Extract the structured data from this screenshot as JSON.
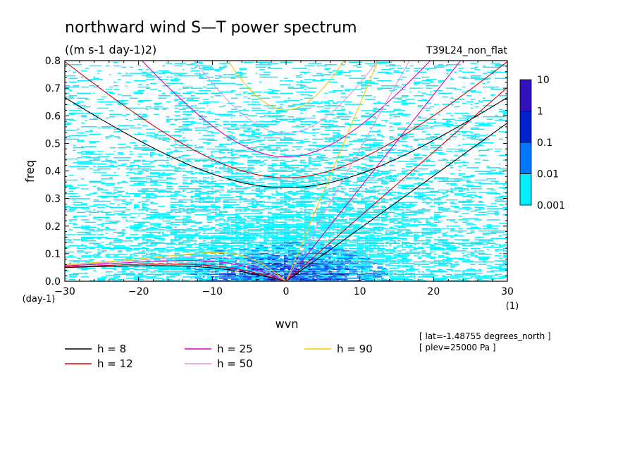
{
  "chart_data": {
    "type": "heatmap",
    "title": "northward wind S—T power spectrum",
    "subtitle": "((m s-1 day-1)2)",
    "experiment": "T39L24_non_flat",
    "xlabel": "wvn",
    "xunit": "(1)",
    "ylabel": "freq",
    "yunit": "(day-1)",
    "xlim": [
      -30,
      30
    ],
    "ylim": [
      0,
      0.8
    ],
    "xticks": [
      -30,
      -20,
      -10,
      0,
      10,
      20,
      30
    ],
    "xtick_labels": [
      "−30",
      "−20",
      "−10",
      "0",
      "10",
      "20",
      "30"
    ],
    "yticks": [
      0.0,
      0.1,
      0.2,
      0.3,
      0.4,
      0.5,
      0.6,
      0.7,
      0.8
    ],
    "ytick_labels": [
      "0.0",
      "0.1",
      "0.2",
      "0.3",
      "0.4",
      "0.5",
      "0.6",
      "0.7",
      "0.8"
    ],
    "colorbar": {
      "levels": [
        0.001,
        0.01,
        0.1,
        1,
        10
      ],
      "labels": [
        "0.001",
        "0.01",
        "0.1",
        "1",
        "10"
      ],
      "colors": [
        "#00eeff",
        "#0077ff",
        "#0022cc",
        "#3311bb"
      ]
    },
    "series": [
      {
        "name": "h = 8",
        "h": 8,
        "color": "#000000"
      },
      {
        "name": "h = 12",
        "h": 12,
        "color": "#dd0000"
      },
      {
        "name": "h = 25",
        "h": 25,
        "color": "#dd00bb"
      },
      {
        "name": "h = 50",
        "h": 50,
        "color": "#dd99dd"
      },
      {
        "name": "h = 90",
        "h": 90,
        "color": "#eecc00"
      }
    ],
    "legend": [
      {
        "label": "h =  8",
        "color": "#000000"
      },
      {
        "label": "h = 12",
        "color": "#dd0000"
      },
      {
        "label": "h = 25",
        "color": "#dd00bb"
      },
      {
        "label": "h = 50",
        "color": "#dd99dd"
      },
      {
        "label": "h = 90",
        "color": "#eecc00"
      }
    ],
    "annotations": [
      "[ lat=-1.48755 degrees_north ]",
      "[ plev=25000 Pa ]"
    ]
  }
}
